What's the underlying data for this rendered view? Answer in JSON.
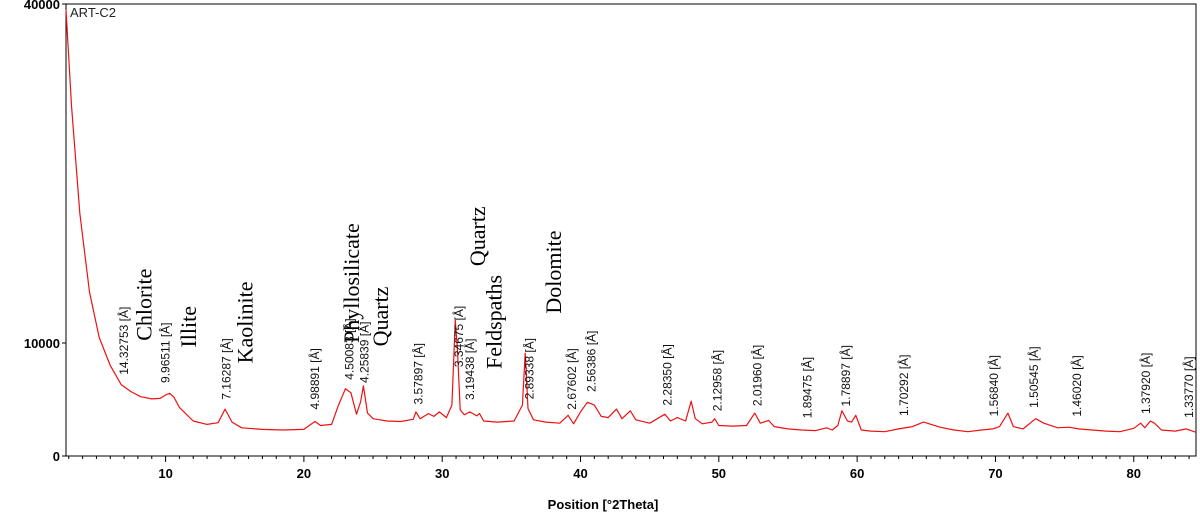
{
  "chart_data": {
    "type": "line",
    "sample_label": "ART-C2",
    "xlabel": "Position [°2Theta]",
    "ylabel": "",
    "xlim": [
      2.8,
      84.5
    ],
    "ylim": [
      0,
      40000
    ],
    "x_ticks": [
      10,
      20,
      30,
      40,
      50,
      60,
      70,
      80
    ],
    "y_ticks": [
      0,
      10000,
      40000
    ],
    "y_tick_labels": [
      "0",
      "10000",
      "40000"
    ],
    "line_color": "#ee1111",
    "series": [
      {
        "x": [
          2.8,
          3.2,
          3.8,
          4.5,
          5.2,
          6.0,
          6.8,
          7.5,
          8.2,
          9.0,
          9.6,
          10.0,
          10.3,
          10.6,
          11.0,
          12.0,
          13.0,
          13.8,
          14.3,
          14.8,
          15.5,
          17.0,
          18.5,
          20.0,
          20.5,
          20.8,
          21.2,
          22.0,
          22.5,
          23.0,
          23.4,
          23.8,
          24.1,
          24.3,
          24.6,
          25.0,
          26.0,
          27.0,
          27.9,
          28.1,
          28.4,
          29.0,
          29.4,
          29.8,
          30.3,
          30.7,
          30.95,
          31.1,
          31.3,
          31.6,
          32.0,
          32.5,
          32.7,
          33.0,
          34.0,
          35.2,
          35.8,
          36.0,
          36.2,
          36.6,
          37.5,
          38.5,
          39.1,
          39.5,
          40.0,
          40.5,
          41.0,
          41.5,
          42.0,
          42.6,
          43.0,
          43.6,
          44.0,
          45.0,
          46.1,
          46.5,
          47.0,
          47.6,
          48.0,
          48.3,
          48.8,
          49.5,
          49.7,
          50.0,
          51.0,
          52.0,
          52.6,
          53.0,
          53.6,
          54.0,
          55.0,
          56.0,
          57.0,
          57.8,
          58.2,
          58.6,
          58.9,
          59.3,
          59.6,
          59.9,
          60.3,
          61.0,
          62.0,
          63.0,
          64.0,
          64.8,
          66.0,
          67.0,
          68.0,
          69.0,
          69.8,
          70.3,
          70.9,
          71.3,
          72.0,
          72.9,
          73.5,
          74.5,
          75.3,
          76.0,
          77.0,
          78.0,
          79.0,
          80.0,
          80.5,
          80.8,
          81.2,
          81.5,
          82.0,
          83.0,
          83.8,
          84.5
        ],
        "y": [
          39500,
          31000,
          21500,
          14500,
          10500,
          8000,
          6300,
          5700,
          5250,
          5050,
          5100,
          5400,
          5550,
          5200,
          4300,
          3100,
          2800,
          2950,
          4150,
          3000,
          2500,
          2350,
          2300,
          2350,
          2800,
          3050,
          2700,
          2800,
          4500,
          5950,
          5600,
          3700,
          4800,
          6200,
          3800,
          3300,
          3100,
          3050,
          3250,
          3900,
          3300,
          3750,
          3500,
          3900,
          3400,
          4500,
          12000,
          9500,
          4100,
          3650,
          3900,
          3550,
          3750,
          3100,
          3000,
          3100,
          4500,
          9100,
          4200,
          3200,
          3000,
          2900,
          3600,
          2850,
          3900,
          4750,
          4500,
          3500,
          3400,
          4150,
          3300,
          4000,
          3200,
          2900,
          3700,
          3100,
          3400,
          3100,
          4850,
          3300,
          2850,
          3000,
          3300,
          2700,
          2650,
          2700,
          3800,
          2900,
          3150,
          2600,
          2400,
          2300,
          2250,
          2500,
          2300,
          2700,
          4000,
          3100,
          3000,
          3600,
          2300,
          2200,
          2150,
          2400,
          2600,
          3000,
          2550,
          2300,
          2150,
          2300,
          2400,
          2600,
          3800,
          2600,
          2400,
          3300,
          2900,
          2500,
          2550,
          2400,
          2300,
          2200,
          2150,
          2450,
          2900,
          2500,
          3100,
          2900,
          2300,
          2200,
          2400,
          2100
        ]
      }
    ],
    "d_spacing_labels": [
      {
        "x": 7.0,
        "text": "14.32753 [Å]"
      },
      {
        "x": 10.0,
        "text": "9.96511 [Å]"
      },
      {
        "x": 14.4,
        "text": "7.16287 [Å]"
      },
      {
        "x": 20.8,
        "text": "4.98891 [Å]"
      },
      {
        "x": 23.3,
        "text": "4.50083 [Å]"
      },
      {
        "x": 24.4,
        "text": "4.25839 [Å]"
      },
      {
        "x": 28.3,
        "text": "3.57897 [Å]"
      },
      {
        "x": 31.2,
        "text": "3.34675 [Å]"
      },
      {
        "x": 32.0,
        "text": "3.19438 [Å]"
      },
      {
        "x": 36.3,
        "text": "2.89338 [Å]"
      },
      {
        "x": 39.4,
        "text": "2.67602 [Å]"
      },
      {
        "x": 40.8,
        "text": "2.56386 [Å]"
      },
      {
        "x": 46.3,
        "text": "2.28350 [Å]"
      },
      {
        "x": 49.9,
        "text": "2.12958 [Å]"
      },
      {
        "x": 52.8,
        "text": "2.01960 [Å]"
      },
      {
        "x": 56.4,
        "text": "1.89475 [Å]"
      },
      {
        "x": 59.2,
        "text": "1.78897 [Å]"
      },
      {
        "x": 63.4,
        "text": "1.70292 [Å]"
      },
      {
        "x": 69.9,
        "text": "1.56840 [Å]"
      },
      {
        "x": 72.8,
        "text": "1.50545 [Å]"
      },
      {
        "x": 75.9,
        "text": "1.46020 [Å]"
      },
      {
        "x": 80.9,
        "text": "1.37920 [Å]"
      },
      {
        "x": 84.0,
        "text": "1.33770 [Å]"
      }
    ],
    "mineral_labels": [
      {
        "x": 9.0,
        "y": 10200,
        "text": "Chlorite"
      },
      {
        "x": 12.2,
        "y": 9600,
        "text": "Illite"
      },
      {
        "x": 16.3,
        "y": 8200,
        "text": "Kaolinite"
      },
      {
        "x": 24.0,
        "y": 10000,
        "text": "Phyllosilicate"
      },
      {
        "x": 26.1,
        "y": 9700,
        "text": "Quartz"
      },
      {
        "x": 33.1,
        "y": 16800,
        "text": "Quartz"
      },
      {
        "x": 34.3,
        "y": 7700,
        "text": "Feldspaths"
      },
      {
        "x": 38.6,
        "y": 12600,
        "text": "Dolomite"
      }
    ]
  }
}
